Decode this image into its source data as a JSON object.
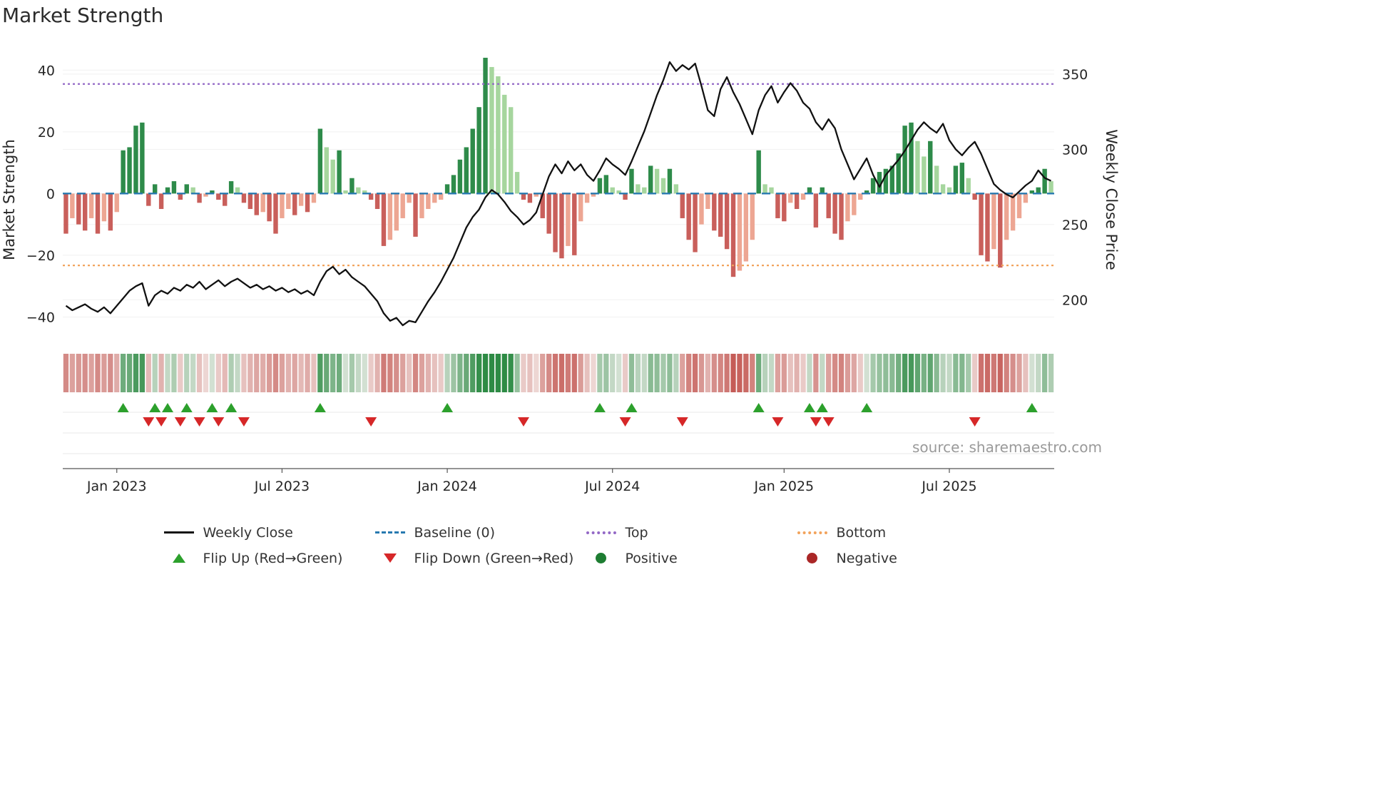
{
  "title": "Market Strength",
  "source_text": "source: sharemaestro.com",
  "axes": {
    "left_label": "Market Strength",
    "right_label": "Weekly Close Price",
    "left_ticks": [
      40,
      20,
      0,
      -20,
      -40
    ],
    "right_ticks": [
      350,
      300,
      250,
      200
    ],
    "left_ylim": [
      -51,
      47
    ],
    "right_ylim": [
      166,
      367
    ]
  },
  "legend": {
    "row1": [
      {
        "key": "weekly-close",
        "label": "Weekly Close"
      },
      {
        "key": "baseline",
        "label": "Baseline (0)"
      },
      {
        "key": "top",
        "label": "Top"
      },
      {
        "key": "bottom",
        "label": "Bottom"
      }
    ],
    "row2": [
      {
        "key": "flip-up",
        "label": "Flip Up (Red→Green)"
      },
      {
        "key": "flip-down",
        "label": "Flip Down (Green→Red)"
      },
      {
        "key": "positive",
        "label": "Positive"
      },
      {
        "key": "negative",
        "label": "Negative"
      }
    ]
  },
  "colors": {
    "price_line": "#111111",
    "baseline": "#2779b0",
    "top_line": "#9368c6",
    "bottom_line": "#f2a35c",
    "bar_pos_strong": "#2e8b4a",
    "bar_pos_light": "#a6d69e",
    "bar_neg_strong": "#c95f5b",
    "bar_neg_light": "#eda693",
    "flip_up": "#2ca02c",
    "flip_down": "#d62728",
    "positive_dot": "#1e7d32",
    "negative_dot": "#aa2727"
  },
  "chart_data": {
    "type": "bar+line combo with heatmap strip and flip markers (weekly data)",
    "x_tick_weeks": [
      8,
      34,
      60,
      86,
      113,
      139
    ],
    "x_tick_labels": [
      "Jan 2023",
      "Jul 2023",
      "Jan 2024",
      "Jul 2024",
      "Jan 2025",
      "Jul 2025"
    ],
    "baseline": 0,
    "top_threshold": 35.5,
    "bottom_threshold": -23.3,
    "left_axis_range": [
      -50,
      45
    ],
    "right_axis_range": [
      183,
      358
    ],
    "flip_rule": "up-marker where strength flips negative→positive; down-marker where positive→negative",
    "strength_weekly": [
      -13,
      -8,
      -10,
      -12,
      -8,
      -13,
      -9,
      -12,
      -6,
      14,
      15,
      22,
      23,
      -4,
      3,
      -5,
      2,
      4,
      -2,
      3,
      2,
      -3,
      -1,
      1,
      -2,
      -4,
      4,
      2,
      -3,
      -5,
      -7,
      -6,
      -9,
      -13,
      -8,
      -5,
      -7,
      -4,
      -6,
      -3,
      21,
      15,
      11,
      14,
      1,
      5,
      2,
      1,
      -2,
      -5,
      -17,
      -15,
      -12,
      -8,
      -3,
      -14,
      -8,
      -5,
      -3,
      -2,
      3,
      6,
      11,
      15,
      21,
      28,
      44,
      41,
      38,
      32,
      28,
      7,
      -2,
      -3,
      -1,
      -8,
      -13,
      -19,
      -21,
      -17,
      -20,
      -9,
      -3,
      -1,
      5,
      6,
      2,
      1,
      -2,
      8,
      3,
      2,
      9,
      8,
      5,
      8,
      3,
      -8,
      -15,
      -19,
      -10,
      -5,
      -12,
      -14,
      -18,
      -27,
      -25,
      -22,
      -15,
      14,
      3,
      2,
      -8,
      -9,
      -3,
      -5,
      -2,
      2,
      -11,
      2,
      -8,
      -13,
      -15,
      -9,
      -7,
      -2,
      1,
      5,
      7,
      8,
      9,
      13,
      22,
      23,
      17,
      12,
      17,
      9,
      3,
      2,
      9,
      10,
      5,
      -2,
      -20,
      -22,
      -18,
      -24,
      -15,
      -12,
      -8,
      -3,
      1,
      2,
      8,
      4
    ],
    "price_weekly": [
      196,
      193,
      195,
      197,
      194,
      192,
      195,
      191,
      196,
      201,
      206,
      209,
      211,
      196,
      203,
      206,
      204,
      208,
      206,
      210,
      208,
      212,
      207,
      210,
      213,
      209,
      212,
      214,
      211,
      208,
      210,
      207,
      209,
      206,
      208,
      205,
      207,
      204,
      206,
      203,
      212,
      219,
      222,
      217,
      220,
      215,
      212,
      209,
      204,
      199,
      191,
      186,
      188,
      183,
      186,
      185,
      192,
      199,
      205,
      212,
      220,
      228,
      238,
      248,
      255,
      260,
      268,
      273,
      270,
      265,
      259,
      255,
      250,
      253,
      258,
      270,
      282,
      290,
      284,
      292,
      286,
      290,
      283,
      279,
      286,
      294,
      290,
      287,
      283,
      292,
      302,
      312,
      324,
      336,
      346,
      358,
      352,
      356,
      353,
      357,
      342,
      326,
      322,
      340,
      348,
      338,
      330,
      320,
      310,
      326,
      336,
      342,
      331,
      338,
      344,
      339,
      331,
      327,
      318,
      313,
      320,
      314,
      300,
      290,
      280,
      287,
      294,
      283,
      275,
      283,
      288,
      293,
      299,
      306,
      313,
      318,
      314,
      311,
      317,
      306,
      300,
      296,
      301,
      305,
      297,
      287,
      277,
      273,
      270,
      268,
      272,
      276,
      279,
      286,
      281,
      279
    ]
  }
}
